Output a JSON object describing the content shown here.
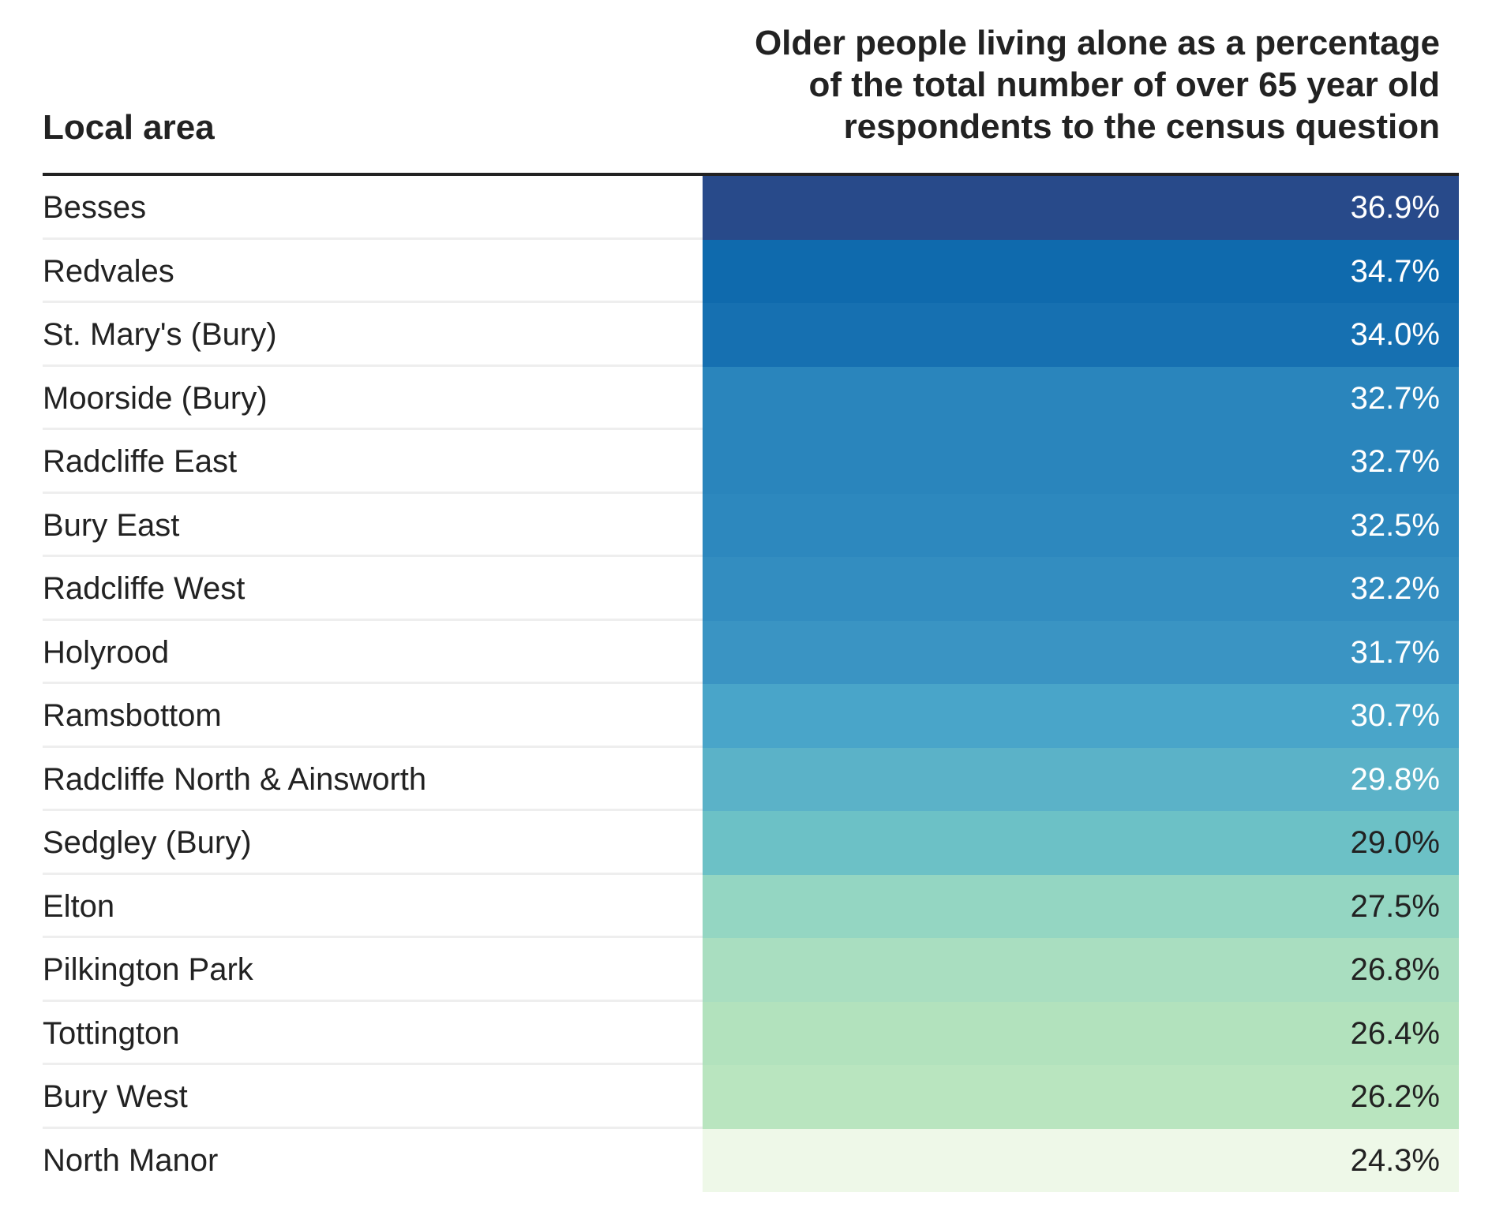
{
  "chart_data": {
    "type": "table",
    "columns": [
      "Local area",
      "Older people living alone as a percentage of the total number of over 65 year old respondents to the census question"
    ],
    "rows": [
      {
        "area": "Besses",
        "value": 36.9,
        "label": "36.9%",
        "color": "#284a8a",
        "text_color": "#ffffff"
      },
      {
        "area": "Redvales",
        "value": 34.7,
        "label": "34.7%",
        "color": "#0f6aad",
        "text_color": "#ffffff"
      },
      {
        "area": "St. Mary's (Bury)",
        "value": 34.0,
        "label": "34.0%",
        "color": "#1670b1",
        "text_color": "#ffffff"
      },
      {
        "area": "Moorside (Bury)",
        "value": 32.7,
        "label": "32.7%",
        "color": "#2a85bc",
        "text_color": "#ffffff"
      },
      {
        "area": "Radcliffe East",
        "value": 32.7,
        "label": "32.7%",
        "color": "#2a85bc",
        "text_color": "#ffffff"
      },
      {
        "area": "Bury East",
        "value": 32.5,
        "label": "32.5%",
        "color": "#2d88be",
        "text_color": "#ffffff"
      },
      {
        "area": "Radcliffe West",
        "value": 32.2,
        "label": "32.2%",
        "color": "#338dc0",
        "text_color": "#ffffff"
      },
      {
        "area": "Holyrood",
        "value": 31.7,
        "label": "31.7%",
        "color": "#3a94c3",
        "text_color": "#ffffff"
      },
      {
        "area": "Ramsbottom",
        "value": 30.7,
        "label": "30.7%",
        "color": "#49a5c9",
        "text_color": "#ffffff"
      },
      {
        "area": "Radcliffe North & Ainsworth",
        "value": 29.8,
        "label": "29.8%",
        "color": "#5bb2c8",
        "text_color": "#ffffff"
      },
      {
        "area": "Sedgley (Bury)",
        "value": 29.0,
        "label": "29.0%",
        "color": "#6cc1c6",
        "text_color": "#222222"
      },
      {
        "area": "Elton",
        "value": 27.5,
        "label": "27.5%",
        "color": "#94d6c2",
        "text_color": "#222222"
      },
      {
        "area": "Pilkington Park",
        "value": 26.8,
        "label": "26.8%",
        "color": "#a9dec0",
        "text_color": "#222222"
      },
      {
        "area": "Tottington",
        "value": 26.4,
        "label": "26.4%",
        "color": "#b2e2bd",
        "text_color": "#222222"
      },
      {
        "area": "Bury West",
        "value": 26.2,
        "label": "26.2%",
        "color": "#b9e5bf",
        "text_color": "#222222"
      },
      {
        "area": "North Manor",
        "value": 24.3,
        "label": "24.3%",
        "color": "#eef8e8",
        "text_color": "#222222"
      }
    ]
  }
}
